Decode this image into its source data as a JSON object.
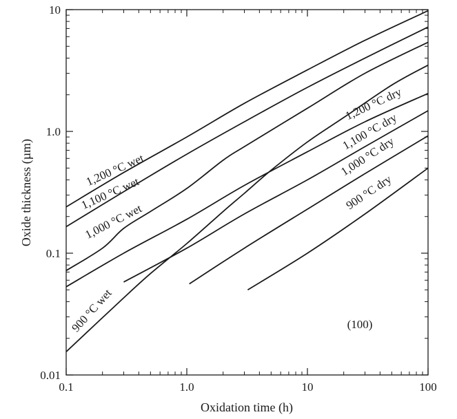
{
  "chart_data": {
    "type": "line",
    "xlabel": "Oxidation time (h)",
    "ylabel": "Oxide thickness (µm)",
    "x_scale": "log",
    "y_scale": "log",
    "xlim": [
      0.1,
      100
    ],
    "ylim": [
      0.01,
      10
    ],
    "x_ticks": [
      {
        "value": 0.1,
        "label": "0.1"
      },
      {
        "value": 1,
        "label": "1.0"
      },
      {
        "value": 10,
        "label": "10"
      },
      {
        "value": 100,
        "label": "100"
      }
    ],
    "y_ticks": [
      {
        "value": 0.01,
        "label": "0.01"
      },
      {
        "value": 0.1,
        "label": "0.1"
      },
      {
        "value": 1,
        "label": "1.0"
      },
      {
        "value": 10,
        "label": "10"
      }
    ],
    "annotation": "(100)",
    "grid": false,
    "series": [
      {
        "name": "1,200 °C wet",
        "points": [
          [
            0.1,
            0.24
          ],
          [
            0.3,
            0.46
          ],
          [
            1,
            0.9
          ],
          [
            3,
            1.7
          ],
          [
            10,
            3.2
          ],
          [
            30,
            5.6
          ],
          [
            100,
            9.8
          ]
        ]
      },
      {
        "name": "1,100 °C wet",
        "points": [
          [
            0.1,
            0.165
          ],
          [
            0.3,
            0.32
          ],
          [
            1,
            0.65
          ],
          [
            3,
            1.2
          ],
          [
            10,
            2.3
          ],
          [
            30,
            4.0
          ],
          [
            100,
            7.2
          ]
        ]
      },
      {
        "name": "1,000 °C wet",
        "points": [
          [
            0.1,
            0.072
          ],
          [
            0.2,
            0.11
          ],
          [
            0.3,
            0.16
          ],
          [
            0.5,
            0.22
          ],
          [
            1,
            0.34
          ],
          [
            2,
            0.58
          ],
          [
            3,
            0.75
          ],
          [
            10,
            1.55
          ],
          [
            30,
            3.0
          ],
          [
            100,
            5.4
          ]
        ]
      },
      {
        "name": "900 °C wet",
        "points": [
          [
            0.1,
            0.0155
          ],
          [
            0.3,
            0.043
          ],
          [
            0.5,
            0.068
          ],
          [
            1,
            0.12
          ],
          [
            2,
            0.22
          ],
          [
            3,
            0.31
          ],
          [
            5,
            0.48
          ],
          [
            10,
            0.82
          ],
          [
            20,
            1.3
          ],
          [
            50,
            2.4
          ],
          [
            100,
            3.5
          ]
        ]
      },
      {
        "name": "1,200 °C dry",
        "points": [
          [
            0.1,
            0.053
          ],
          [
            0.3,
            0.1
          ],
          [
            1,
            0.19
          ],
          [
            3,
            0.36
          ],
          [
            10,
            0.68
          ],
          [
            30,
            1.2
          ],
          [
            100,
            2.05
          ]
        ]
      },
      {
        "name": "1,100 °C dry",
        "points": [
          [
            0.3,
            0.058
          ],
          [
            1,
            0.11
          ],
          [
            3,
            0.21
          ],
          [
            10,
            0.4
          ],
          [
            30,
            0.75
          ],
          [
            100,
            1.48
          ]
        ]
      },
      {
        "name": "1,000 °C dry",
        "points": [
          [
            1.05,
            0.056
          ],
          [
            3,
            0.11
          ],
          [
            10,
            0.23
          ],
          [
            30,
            0.45
          ],
          [
            100,
            0.92
          ]
        ]
      },
      {
        "name": "900 °C dry",
        "points": [
          [
            3.2,
            0.05
          ],
          [
            10,
            0.1
          ],
          [
            30,
            0.21
          ],
          [
            100,
            0.5
          ]
        ]
      }
    ],
    "curve_labels": [
      {
        "series": "1,200 °C wet",
        "text": "1,200 °C wet"
      },
      {
        "series": "1,100 °C wet",
        "text": "1,100 °C wet"
      },
      {
        "series": "1,000 °C wet",
        "text": "1,000 °C wet"
      },
      {
        "series": "900 °C wet",
        "text": "900 °C wet"
      },
      {
        "series": "1,200 °C dry",
        "text": "1,200 °C dry"
      },
      {
        "series": "1,100 °C dry",
        "text": "1,100 °C dry"
      },
      {
        "series": "1,000 °C dry",
        "text": "1,000 °C dry"
      },
      {
        "series": "900 °C dry",
        "text": "900 °C dry"
      }
    ],
    "colors": {
      "line": "#1a1a1a",
      "background": "#ffffff"
    }
  }
}
